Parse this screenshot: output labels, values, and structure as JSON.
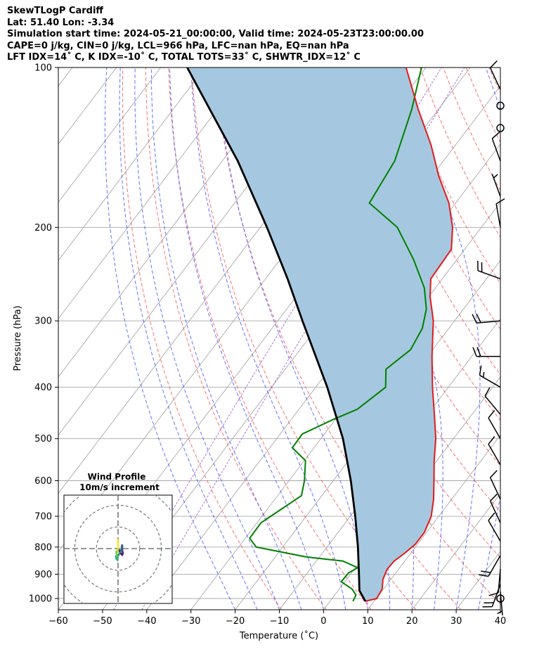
{
  "header": {
    "line1": "SkewTLogP Cardiff",
    "line2": "Lat: 51.40   Lon: -3.34",
    "line3": "Simulation start time: 2024-05-21_00:00:00, Valid time: 2024-05-23T23:00:00.00",
    "line4": "CAPE=0 j/kg, CIN=0 j/kg, LCL=966 hPa, LFC=nan hPa, EQ=nan hPa",
    "line5": "LFT IDX=14˚ C, K IDX=-10˚ C, TOTAL TOTS=33˚ C, SHWTR_IDX=12˚ C"
  },
  "chart_data": {
    "type": "line",
    "subtype": "skew-T log-P diagram",
    "xlabel": "Temperature (˚C)",
    "ylabel": "Pressure (hPa)",
    "xlim": [
      -60,
      40
    ],
    "ylim": [
      1050,
      100
    ],
    "y_scale": "log",
    "grid": true,
    "x_ticks": [
      -60,
      -50,
      -40,
      -30,
      -20,
      -10,
      0,
      10,
      20,
      30,
      40
    ],
    "x_tick_labels": [
      "−60",
      "−50",
      "−40",
      "−30",
      "−20",
      "−10",
      "0",
      "10",
      "20",
      "30",
      "40"
    ],
    "y_ticks": [
      1000,
      900,
      800,
      700,
      600,
      500,
      400,
      300,
      200,
      100
    ],
    "y_tick_labels": [
      "1000",
      "900",
      "800",
      "700",
      "600",
      "500",
      "400",
      "300",
      "200",
      "100"
    ],
    "series": [
      {
        "color": "#e31a1c",
        "pressure": [
          1012,
          1000,
          960,
          920,
          880,
          850,
          820,
          790,
          750,
          700,
          650,
          600,
          550,
          500,
          450,
          400,
          350,
          300,
          270,
          250,
          220,
          200,
          180,
          160,
          140,
          120,
          100
        ],
        "temperature": [
          8,
          10.1,
          9.7,
          8.2,
          7.4,
          7.6,
          8.7,
          9.5,
          9.5,
          8.3,
          5.9,
          2.8,
          -0.6,
          -4.0,
          -8.5,
          -13.6,
          -19.0,
          -24.8,
          -29.7,
          -32.6,
          -33.0,
          -36.5,
          -41.5,
          -48.5,
          -55.5,
          -64.5,
          -74.5
        ]
      },
      {
        "color": "#008000",
        "pressure": [
          1012,
          985,
          960,
          930,
          895,
          875,
          850,
          835,
          800,
          770,
          720,
          680,
          640,
          600,
          550,
          520,
          490,
          460,
          440,
          400,
          370,
          340,
          310,
          285,
          260,
          230,
          200,
          180,
          150,
          120,
          100
        ],
        "temperature": [
          5.2,
          4.8,
          2.9,
          -0.8,
          -0.7,
          0.5,
          -4.0,
          -13.0,
          -26.0,
          -29.0,
          -29.1,
          -26.9,
          -24.6,
          -26.5,
          -29.7,
          -34.9,
          -35.0,
          -30.5,
          -26.8,
          -24.2,
          -27.2,
          -25.0,
          -26.0,
          -28.4,
          -32.5,
          -39.8,
          -49.0,
          -59.5,
          -61.0,
          -66.0,
          -71.0
        ]
      },
      {
        "color": "#000000",
        "name_on_chart": "",
        "pressure": [
          1012,
          966,
          900,
          800,
          700,
          600,
          500,
          400,
          300,
          250,
          200,
          150,
          100
        ],
        "temperature": [
          8,
          4.8,
          1.9,
          -3.0,
          -8.9,
          -16.0,
          -25.0,
          -37.4,
          -54.4,
          -65.0,
          -78.5,
          -96.5,
          -124.0
        ]
      }
    ],
    "wind_barbs": [
      {
        "pressure": 1000,
        "calm": true
      },
      {
        "pressure": 970,
        "speed_kt": 5,
        "dir_deg": 175
      },
      {
        "pressure": 940,
        "speed_kt": 20,
        "dir_deg": 200
      },
      {
        "pressure": 880,
        "speed_kt": 10,
        "dir_deg": 185
      },
      {
        "pressure": 830,
        "speed_kt": 20,
        "dir_deg": 210
      },
      {
        "pressure": 780,
        "speed_kt": 10,
        "dir_deg": 330
      },
      {
        "pressure": 720,
        "speed_kt": 10,
        "dir_deg": 335
      },
      {
        "pressure": 650,
        "speed_kt": 10,
        "dir_deg": 335
      },
      {
        "pressure": 560,
        "speed_kt": 10,
        "dir_deg": 330
      },
      {
        "pressure": 500,
        "speed_kt": 10,
        "dir_deg": 330
      },
      {
        "pressure": 450,
        "speed_kt": 10,
        "dir_deg": 320
      },
      {
        "pressure": 400,
        "speed_kt": 15,
        "dir_deg": 300
      },
      {
        "pressure": 350,
        "speed_kt": 20,
        "dir_deg": 270
      },
      {
        "pressure": 300,
        "speed_kt": 20,
        "dir_deg": 265
      },
      {
        "pressure": 250,
        "speed_kt": 20,
        "dir_deg": 290
      },
      {
        "pressure": 200,
        "speed_kt": 10,
        "dir_deg": 350
      },
      {
        "pressure": 175,
        "speed_kt": 5,
        "dir_deg": 340
      },
      {
        "pressure": 150,
        "speed_kt": 10,
        "dir_deg": 340
      },
      {
        "pressure": 130,
        "calm": true
      },
      {
        "pressure": 118,
        "calm": true
      },
      {
        "pressure": 110,
        "speed_kt": 10,
        "dir_deg": 335
      }
    ],
    "hodograph": {
      "title_line1": "Wind Profile",
      "title_line2": "10m/s increment",
      "ring_speeds_ms": [
        10,
        20,
        30
      ],
      "axis_max_ms": 25,
      "points_uv_ms": [
        [
          0.4,
          -0.5
        ],
        [
          1.0,
          -1.8
        ],
        [
          1.9,
          -3.0
        ],
        [
          2.3,
          -2.1
        ],
        [
          1.9,
          -0.6
        ],
        [
          2.0,
          1.2
        ],
        [
          1.8,
          1.6
        ],
        [
          1.5,
          -0.5
        ],
        [
          0.8,
          -2.0
        ],
        [
          0.2,
          -3.0
        ],
        [
          -0.5,
          -2.8
        ],
        [
          -1.0,
          -3.5
        ],
        [
          -0.8,
          -4.8
        ],
        [
          -0.2,
          -5.4
        ],
        [
          -0.5,
          -3.5
        ],
        [
          -0.9,
          -1.5
        ],
        [
          -0.4,
          -0.9
        ],
        [
          -0.1,
          -1.5
        ],
        [
          0.1,
          0.2
        ],
        [
          -0.1,
          2.2
        ],
        [
          -0.2,
          4.2
        ]
      ]
    },
    "colors": {
      "temperature": "#e31a1c",
      "dewpoint": "#008000",
      "parcel": "#000000",
      "cape_fill": "#a5c8e0",
      "dry_adiabats": "#f05050",
      "moist_adiabats": "#3f4fff",
      "mixing_ratio": "#9a4ec0",
      "isotherms": "#a8a8a8"
    }
  }
}
